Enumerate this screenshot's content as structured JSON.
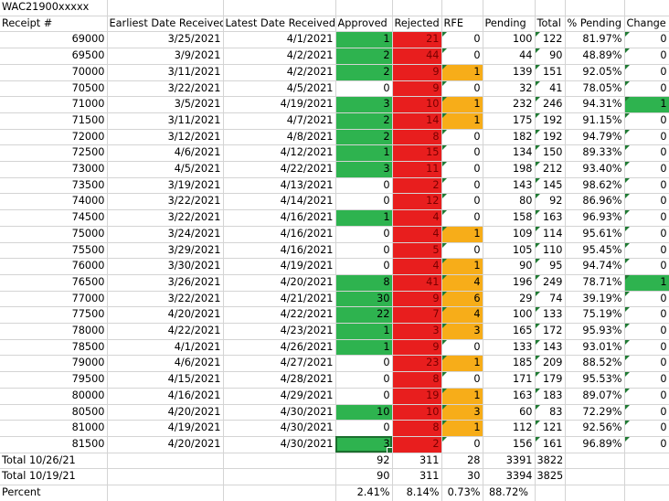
{
  "sheet": {
    "title": "WAC21900xxxxx",
    "headers": [
      "Receipt #",
      "Earliest Date Received",
      "Latest Date Received",
      "Approved",
      "Rejected",
      "RFE",
      "Pending",
      "Total",
      "% Pending",
      "Change"
    ],
    "rows": [
      [
        "69000",
        "3/25/2021",
        "4/1/2021",
        "1",
        "21",
        "0",
        "100",
        "122",
        "81.97%",
        "0"
      ],
      [
        "69500",
        "3/9/2021",
        "4/2/2021",
        "2",
        "44",
        "0",
        "44",
        "90",
        "48.89%",
        "0"
      ],
      [
        "70000",
        "3/11/2021",
        "4/2/2021",
        "2",
        "9",
        "1",
        "139",
        "151",
        "92.05%",
        "0"
      ],
      [
        "70500",
        "3/22/2021",
        "4/5/2021",
        "0",
        "9",
        "0",
        "32",
        "41",
        "78.05%",
        "0"
      ],
      [
        "71000",
        "3/5/2021",
        "4/19/2021",
        "3",
        "10",
        "1",
        "232",
        "246",
        "94.31%",
        "1"
      ],
      [
        "71500",
        "3/11/2021",
        "4/7/2021",
        "2",
        "14",
        "1",
        "175",
        "192",
        "91.15%",
        "0"
      ],
      [
        "72000",
        "3/12/2021",
        "4/8/2021",
        "2",
        "8",
        "0",
        "182",
        "192",
        "94.79%",
        "0"
      ],
      [
        "72500",
        "4/6/2021",
        "4/12/2021",
        "1",
        "15",
        "0",
        "134",
        "150",
        "89.33%",
        "0"
      ],
      [
        "73000",
        "4/5/2021",
        "4/22/2021",
        "3",
        "11",
        "0",
        "198",
        "212",
        "93.40%",
        "0"
      ],
      [
        "73500",
        "3/19/2021",
        "4/13/2021",
        "0",
        "2",
        "0",
        "143",
        "145",
        "98.62%",
        "0"
      ],
      [
        "74000",
        "3/22/2021",
        "4/14/2021",
        "0",
        "12",
        "0",
        "80",
        "92",
        "86.96%",
        "0"
      ],
      [
        "74500",
        "3/22/2021",
        "4/16/2021",
        "1",
        "4",
        "0",
        "158",
        "163",
        "96.93%",
        "0"
      ],
      [
        "75000",
        "3/24/2021",
        "4/16/2021",
        "0",
        "4",
        "1",
        "109",
        "114",
        "95.61%",
        "0"
      ],
      [
        "75500",
        "3/29/2021",
        "4/16/2021",
        "0",
        "5",
        "0",
        "105",
        "110",
        "95.45%",
        "0"
      ],
      [
        "76000",
        "3/30/2021",
        "4/19/2021",
        "0",
        "4",
        "1",
        "90",
        "95",
        "94.74%",
        "0"
      ],
      [
        "76500",
        "3/26/2021",
        "4/20/2021",
        "8",
        "41",
        "4",
        "196",
        "249",
        "78.71%",
        "1"
      ],
      [
        "77000",
        "3/22/2021",
        "4/21/2021",
        "30",
        "9",
        "6",
        "29",
        "74",
        "39.19%",
        "0"
      ],
      [
        "77500",
        "4/20/2021",
        "4/22/2021",
        "22",
        "7",
        "4",
        "100",
        "133",
        "75.19%",
        "0"
      ],
      [
        "78000",
        "4/22/2021",
        "4/23/2021",
        "1",
        "3",
        "3",
        "165",
        "172",
        "95.93%",
        "0"
      ],
      [
        "78500",
        "4/1/2021",
        "4/26/2021",
        "1",
        "9",
        "0",
        "133",
        "143",
        "93.01%",
        "0"
      ],
      [
        "79000",
        "4/6/2021",
        "4/27/2021",
        "0",
        "23",
        "1",
        "185",
        "209",
        "88.52%",
        "0"
      ],
      [
        "79500",
        "4/15/2021",
        "4/28/2021",
        "0",
        "8",
        "0",
        "171",
        "179",
        "95.53%",
        "0"
      ],
      [
        "80000",
        "4/16/2021",
        "4/29/2021",
        "0",
        "19",
        "1",
        "163",
        "183",
        "89.07%",
        "0"
      ],
      [
        "80500",
        "4/20/2021",
        "4/30/2021",
        "10",
        "10",
        "3",
        "60",
        "83",
        "72.29%",
        "0"
      ],
      [
        "81000",
        "4/19/2021",
        "4/30/2021",
        "0",
        "8",
        "1",
        "112",
        "121",
        "92.56%",
        "0"
      ],
      [
        "81500",
        "4/20/2021",
        "4/30/2021",
        "3",
        "2",
        "0",
        "156",
        "161",
        "96.89%",
        "0"
      ]
    ],
    "totals": [
      {
        "label": "Total 10/26/21",
        "approved": "92",
        "rejected": "311",
        "rfe": "28",
        "pending": "3391",
        "total": "3822"
      },
      {
        "label": "Total 10/19/21",
        "approved": "90",
        "rejected": "311",
        "rfe": "30",
        "pending": "3394",
        "total": "3825"
      }
    ],
    "percent": {
      "label": "Percent",
      "approved": "2.41%",
      "rejected": "8.14%",
      "rfe": "0.73%",
      "pending": "88.72%"
    },
    "colors": {
      "approved": "#2eb34f",
      "rejected": "#e81e1e",
      "rfe": "#f7ad19",
      "change": "#2eb34f"
    }
  }
}
